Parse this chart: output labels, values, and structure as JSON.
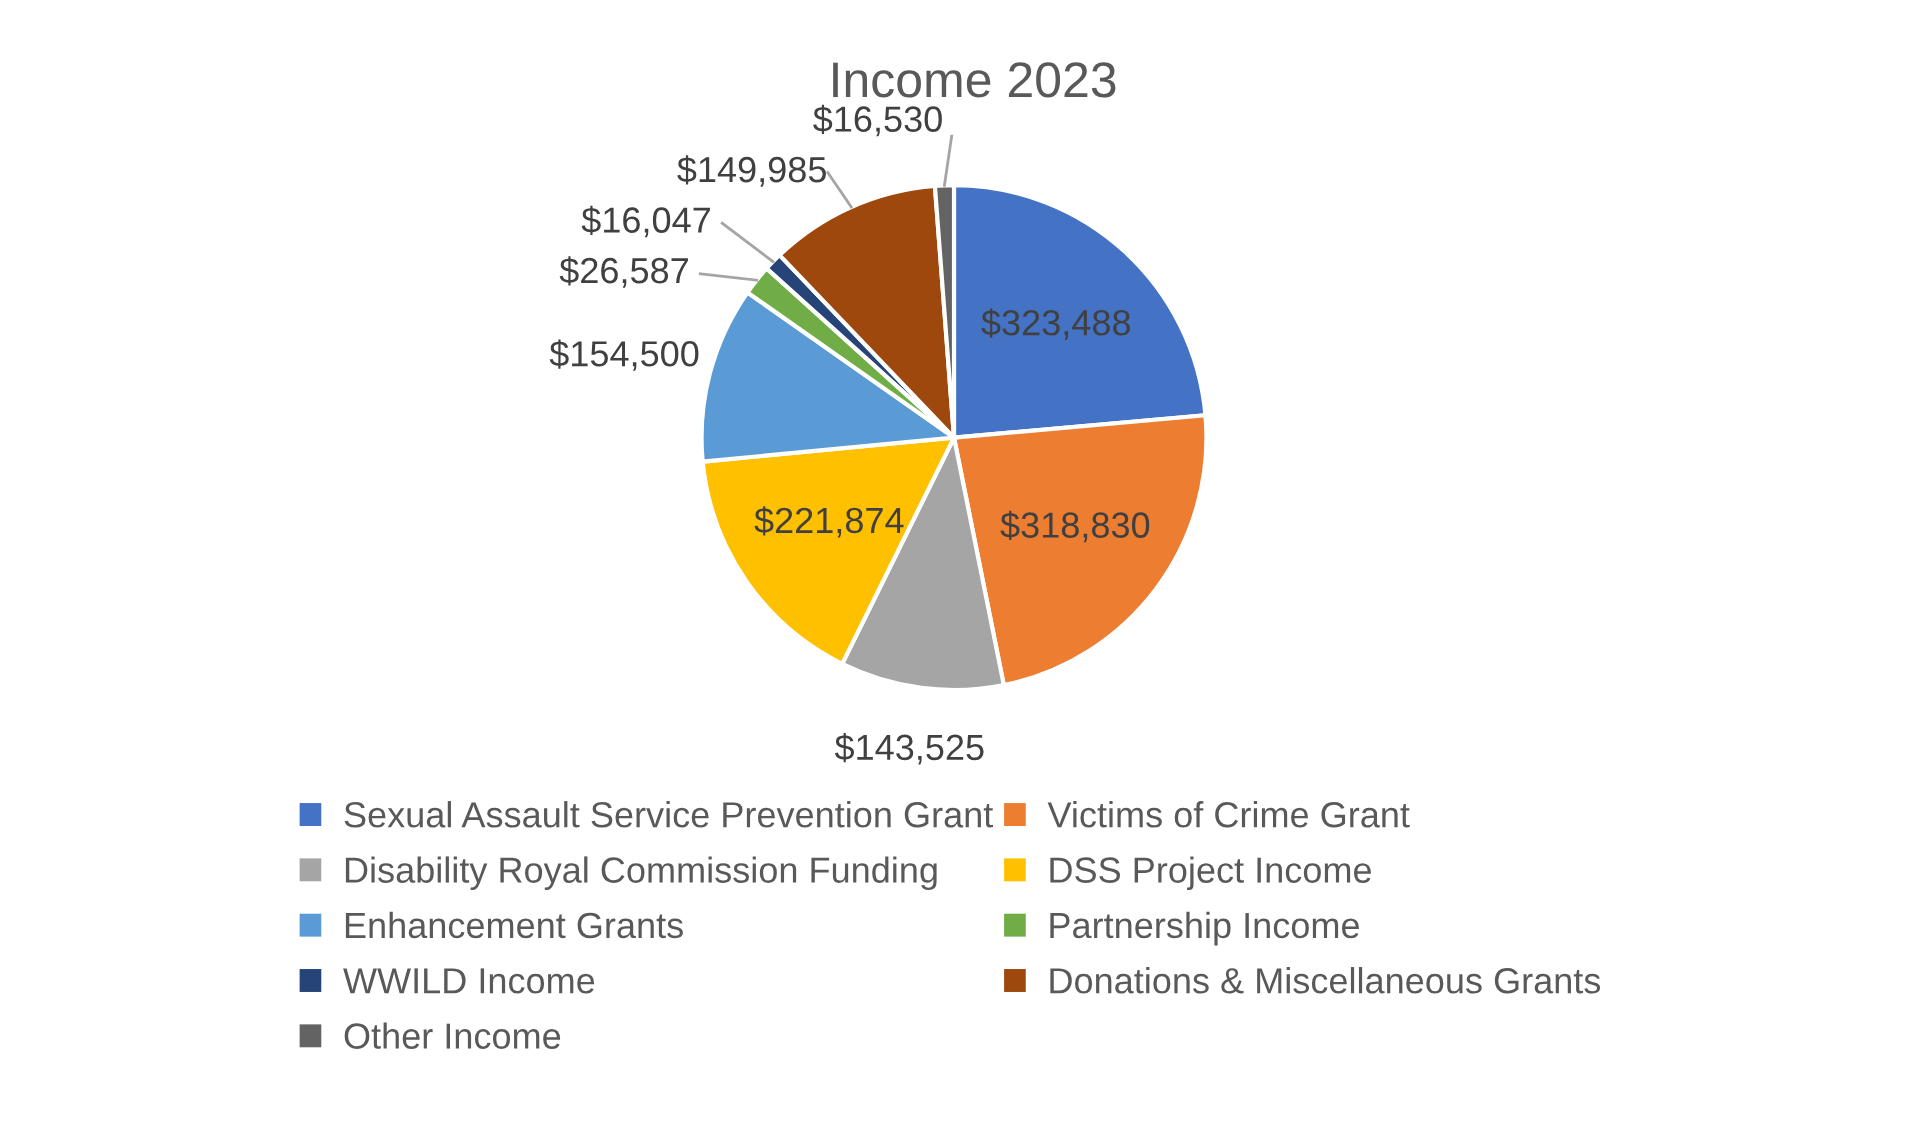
{
  "chart_data": {
    "type": "pie",
    "title": "Income 2023",
    "categories": [
      "Sexual Assault Service Prevention Grant",
      "Victims of Crime Grant",
      "Disability Royal Commission Funding",
      "DSS Project Income",
      "Enhancement Grants",
      "Partnership Income",
      "WWILD Income",
      "Donations & Miscellaneous Grants",
      "Other Income"
    ],
    "values": [
      323488,
      318830,
      143525,
      221874,
      154500,
      26587,
      16047,
      149985,
      16530
    ],
    "colors": [
      "#4472c4",
      "#ed7d31",
      "#a5a5a5",
      "#ffc000",
      "#5b9bd5",
      "#70ad47",
      "#264478",
      "#9e480e",
      "#636363"
    ],
    "value_labels": [
      "$323,488",
      "$318,830",
      "$143,525",
      "$221,874",
      "$154,500",
      "$26,587",
      "$16,047",
      "$149,985",
      "$16,530"
    ],
    "legend": "bottom"
  }
}
